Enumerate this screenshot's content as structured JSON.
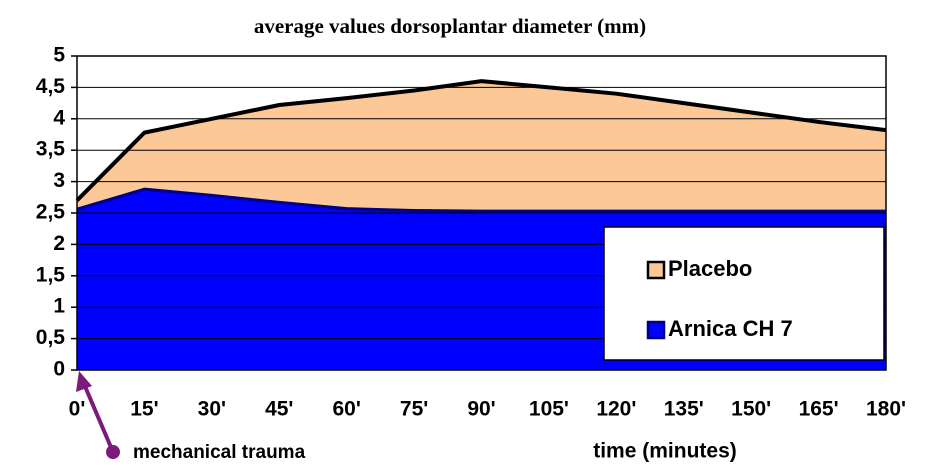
{
  "chart_data": {
    "type": "area",
    "title": "average values dorsoplantar diameter (mm)",
    "x_label": "time (minutes)",
    "categories": [
      "0'",
      "15'",
      "30'",
      "45'",
      "60'",
      "75'",
      "90'",
      "105'",
      "120'",
      "135'",
      "150'",
      "165'",
      "180'"
    ],
    "series": [
      {
        "name": "Placebo",
        "color": "#fcc898",
        "line_color": "#000000",
        "values": [
          2.7,
          3.78,
          4.0,
          4.22,
          4.33,
          4.45,
          4.6,
          4.5,
          4.4,
          4.25,
          4.1,
          3.95,
          3.82
        ]
      },
      {
        "name": "Arnica CH 7",
        "color": "#0000ff",
        "line_color": "#000080",
        "values": [
          2.56,
          2.88,
          2.78,
          2.67,
          2.57,
          2.54,
          2.53,
          2.53,
          2.53,
          2.53,
          2.53,
          2.53,
          2.53
        ]
      }
    ],
    "ylim": [
      0,
      5
    ],
    "yticks": [
      0,
      {
        "value": 0.5,
        "label": "0,5"
      },
      1,
      {
        "value": 1.5,
        "label": "1,5"
      },
      2,
      {
        "value": 2.5,
        "label": "2,5"
      },
      3,
      {
        "value": 3.5,
        "label": "3,5"
      },
      4,
      {
        "value": 4.5,
        "label": "4,5"
      },
      5
    ],
    "grid": true,
    "legend": "lower right",
    "annotation": "mechanical trauma",
    "annotation_color": "#7a1a7a"
  }
}
